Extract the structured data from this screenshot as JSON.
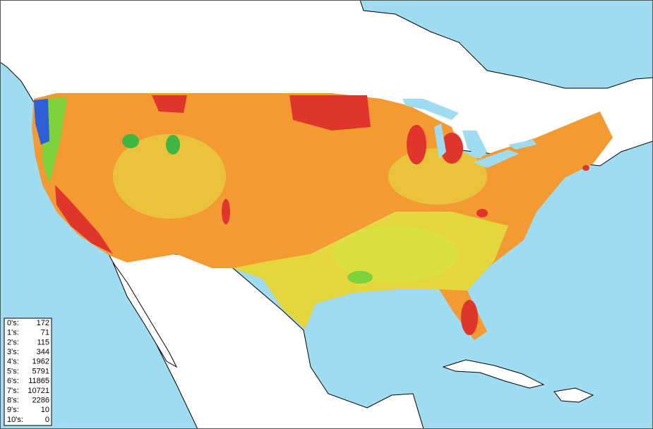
{
  "legend": {
    "rows": [
      {
        "label": "0's:",
        "count": 172
      },
      {
        "label": "1's:",
        "count": 71
      },
      {
        "label": "2's:",
        "count": 115
      },
      {
        "label": "3's:",
        "count": 344
      },
      {
        "label": "4's:",
        "count": 1962
      },
      {
        "label": "5's:",
        "count": 5791
      },
      {
        "label": "6's:",
        "count": 11865
      },
      {
        "label": "7's:",
        "count": 10721
      },
      {
        "label": "8's:",
        "count": 2286
      },
      {
        "label": "9's:",
        "count": 10
      },
      {
        "label": "10's:",
        "count": 0
      }
    ]
  }
}
